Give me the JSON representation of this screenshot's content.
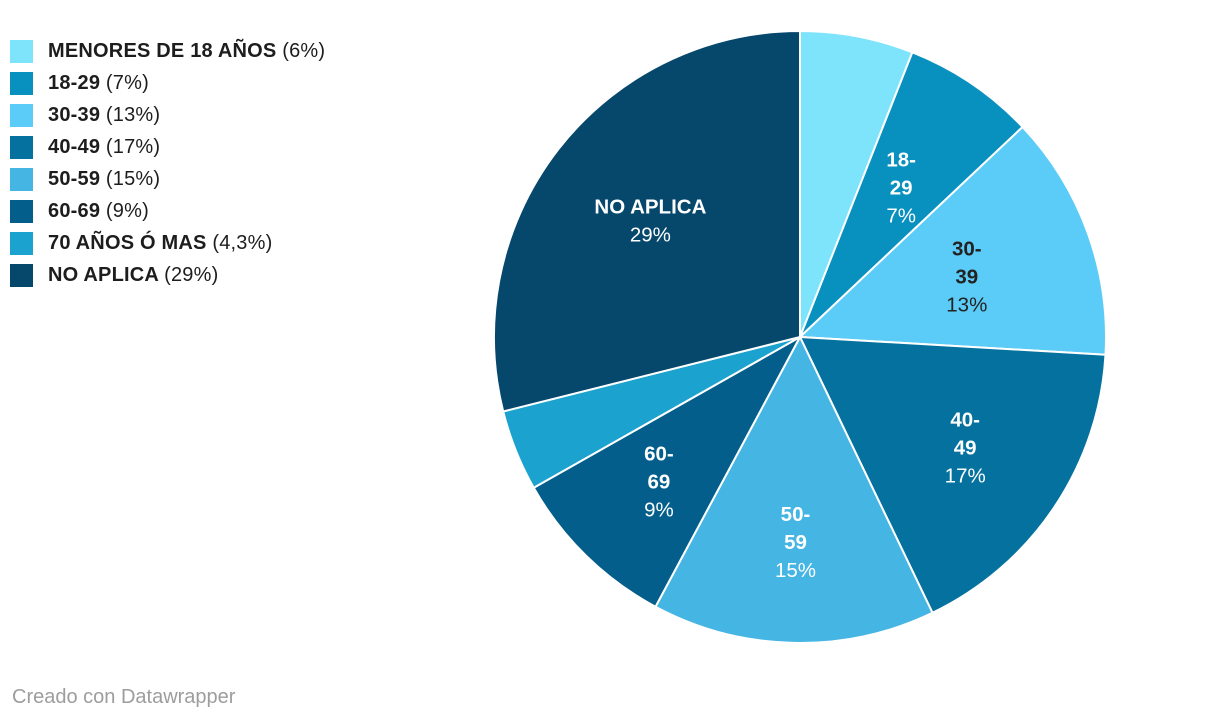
{
  "page": {
    "background": "#ffffff"
  },
  "chart_data": {
    "type": "pie",
    "title": "",
    "start_angle": "top",
    "direction": "clockwise",
    "legend_position": "top-left",
    "unit": "%",
    "categories": [
      "MENORES DE 18 AÑOS",
      "18-29",
      "30-39",
      "40-49",
      "50-59",
      "60-69",
      "70 AÑOS Ó MAS",
      "NO APLICA"
    ],
    "values": [
      6,
      7,
      13,
      17,
      15,
      9,
      4.3,
      29
    ],
    "colors": [
      "#7DE4FB",
      "#0890BE",
      "#5BCBF7",
      "#05719E",
      "#45B5E4",
      "#045E8B",
      "#1CA2CE",
      "#06476C"
    ],
    "legend_value_labels": [
      "(6%)",
      "(7%)",
      "(13%)",
      "(17%)",
      "(15%)",
      "(9%)",
      "(4,3%)",
      "(29%)"
    ],
    "slice_labels": [
      null,
      {
        "lines": [
          "18-",
          "29"
        ],
        "pct": "7%",
        "color": "#ffffff",
        "r": 0.59
      },
      {
        "lines": [
          "30-",
          "39"
        ],
        "pct": "13%",
        "color": "#222222",
        "r": 0.58
      },
      {
        "lines": [
          "40-",
          "49"
        ],
        "pct": "17%",
        "color": "#ffffff",
        "r": 0.65
      },
      {
        "lines": [
          "50-",
          "59"
        ],
        "pct": "15%",
        "color": "#ffffff",
        "r": 0.67
      },
      {
        "lines": [
          "60-",
          "69"
        ],
        "pct": "9%",
        "color": "#ffffff",
        "r": 0.66
      },
      null,
      {
        "lines": [
          "NO APLICA"
        ],
        "pct": "29%",
        "color": "#ffffff",
        "r": 0.62
      }
    ],
    "slice_border_color": "#ffffff"
  },
  "footer": {
    "attribution": "Creado con Datawrapper"
  }
}
